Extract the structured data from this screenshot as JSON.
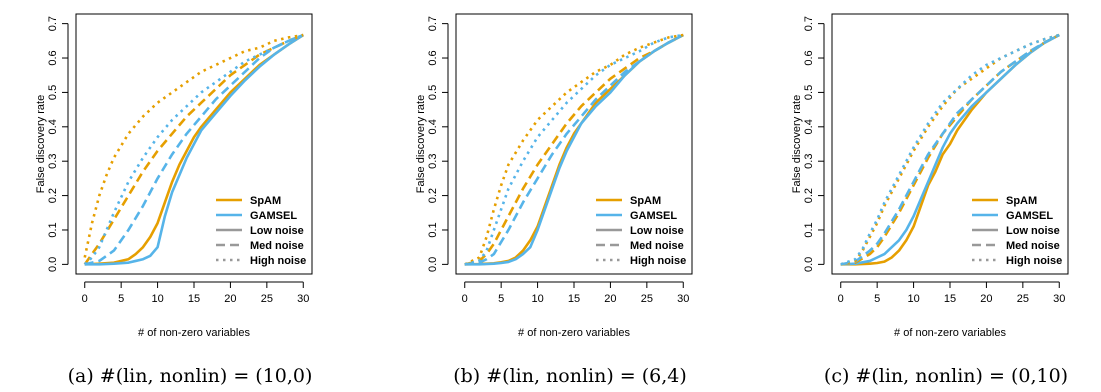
{
  "colors": {
    "SpAM": "#E69F00",
    "GAMSEL": "#56B4E9",
    "gray": "#999999"
  },
  "chart_data": [
    {
      "type": "line",
      "caption": "(a) #(lin, nonlin) = (10,0)",
      "title": "",
      "xlabel": "# of non-zero variables",
      "ylabel": "False discovery rate",
      "xlim": [
        0,
        30
      ],
      "ylim": [
        0,
        0.7
      ],
      "xticks": [
        "0",
        "5",
        "10",
        "15",
        "20",
        "25",
        "30"
      ],
      "yticks": [
        "0.0",
        "0.1",
        "0.2",
        "0.3",
        "0.4",
        "0.5",
        "0.6",
        "0.7"
      ],
      "legend": {
        "position": "bottom-right",
        "entries": [
          {
            "label": "SpAM",
            "color": "#E69F00",
            "dash": "solid"
          },
          {
            "label": "GAMSEL",
            "color": "#56B4E9",
            "dash": "solid"
          },
          {
            "label": "Low noise",
            "color": "#999999",
            "dash": "solid"
          },
          {
            "label": "Med noise",
            "color": "#999999",
            "dash": "dashed"
          },
          {
            "label": "High noise",
            "color": "#999999",
            "dash": "dotted"
          }
        ]
      },
      "series": [
        {
          "name": "SpAM Low noise",
          "method": "SpAM",
          "noise": "Low noise",
          "x": [
            0,
            2,
            4,
            6,
            7,
            8,
            9,
            10,
            11,
            12,
            13,
            14,
            15,
            16,
            18,
            20,
            22,
            24,
            26,
            28,
            30
          ],
          "y": [
            0,
            0.002,
            0.005,
            0.015,
            0.03,
            0.05,
            0.08,
            0.12,
            0.18,
            0.24,
            0.29,
            0.33,
            0.37,
            0.4,
            0.45,
            0.5,
            0.54,
            0.58,
            0.61,
            0.64,
            0.667
          ]
        },
        {
          "name": "GAMSEL Low noise",
          "method": "GAMSEL",
          "noise": "Low noise",
          "x": [
            0,
            2,
            4,
            6,
            7,
            8,
            9,
            10,
            11,
            12,
            13,
            14,
            15,
            16,
            18,
            20,
            22,
            24,
            26,
            28,
            30
          ],
          "y": [
            0,
            0,
            0.002,
            0.005,
            0.01,
            0.015,
            0.025,
            0.05,
            0.14,
            0.21,
            0.26,
            0.31,
            0.35,
            0.39,
            0.44,
            0.49,
            0.535,
            0.575,
            0.61,
            0.64,
            0.667
          ]
        },
        {
          "name": "SpAM Med noise",
          "method": "SpAM",
          "noise": "Med noise",
          "x": [
            0,
            1,
            2,
            4,
            6,
            8,
            10,
            12,
            14,
            16,
            18,
            20,
            22,
            24,
            26,
            28,
            30
          ],
          "y": [
            0,
            0.03,
            0.06,
            0.13,
            0.2,
            0.27,
            0.33,
            0.38,
            0.43,
            0.47,
            0.51,
            0.55,
            0.58,
            0.61,
            0.63,
            0.65,
            0.667
          ]
        },
        {
          "name": "GAMSEL Med noise",
          "method": "GAMSEL",
          "noise": "Med noise",
          "x": [
            0,
            1,
            2,
            4,
            6,
            8,
            10,
            12,
            14,
            16,
            18,
            20,
            22,
            24,
            26,
            28,
            30
          ],
          "y": [
            0,
            0.005,
            0.01,
            0.04,
            0.1,
            0.17,
            0.25,
            0.32,
            0.38,
            0.43,
            0.48,
            0.52,
            0.56,
            0.6,
            0.63,
            0.65,
            0.667
          ]
        },
        {
          "name": "SpAM High noise",
          "method": "SpAM",
          "noise": "High noise",
          "x": [
            0,
            1,
            2,
            3,
            4,
            6,
            8,
            10,
            12,
            14,
            16,
            18,
            20,
            22,
            24,
            26,
            28,
            30
          ],
          "y": [
            0.02,
            0.12,
            0.2,
            0.26,
            0.31,
            0.38,
            0.43,
            0.47,
            0.5,
            0.53,
            0.56,
            0.58,
            0.6,
            0.62,
            0.63,
            0.65,
            0.66,
            0.667
          ]
        },
        {
          "name": "GAMSEL High noise",
          "method": "GAMSEL",
          "noise": "High noise",
          "x": [
            0,
            1,
            2,
            4,
            6,
            8,
            10,
            12,
            14,
            16,
            18,
            20,
            22,
            24,
            26,
            28,
            30
          ],
          "y": [
            0,
            0.02,
            0.05,
            0.15,
            0.24,
            0.31,
            0.37,
            0.42,
            0.46,
            0.5,
            0.53,
            0.56,
            0.59,
            0.61,
            0.63,
            0.65,
            0.667
          ]
        }
      ]
    },
    {
      "type": "line",
      "caption": "(b) #(lin, nonlin) = (6,4)",
      "title": "",
      "xlabel": "# of non-zero variables",
      "ylabel": "False discovery rate",
      "xlim": [
        0,
        30
      ],
      "ylim": [
        0,
        0.7
      ],
      "xticks": [
        "0",
        "5",
        "10",
        "15",
        "20",
        "25",
        "30"
      ],
      "yticks": [
        "0.0",
        "0.1",
        "0.2",
        "0.3",
        "0.4",
        "0.5",
        "0.6",
        "0.7"
      ],
      "legend": {
        "position": "bottom-right",
        "entries": [
          {
            "label": "SpAM",
            "color": "#E69F00",
            "dash": "solid"
          },
          {
            "label": "GAMSEL",
            "color": "#56B4E9",
            "dash": "solid"
          },
          {
            "label": "Low noise",
            "color": "#999999",
            "dash": "solid"
          },
          {
            "label": "Med noise",
            "color": "#999999",
            "dash": "dashed"
          },
          {
            "label": "High noise",
            "color": "#999999",
            "dash": "dotted"
          }
        ]
      },
      "series": [
        {
          "name": "SpAM Low noise",
          "method": "SpAM",
          "noise": "Low noise",
          "x": [
            0,
            2,
            4,
            5,
            6,
            7,
            8,
            9,
            10,
            11,
            12,
            13,
            14,
            15,
            16,
            18,
            20,
            22,
            24,
            26,
            28,
            30
          ],
          "y": [
            0,
            0.001,
            0.003,
            0.006,
            0.01,
            0.02,
            0.04,
            0.07,
            0.11,
            0.17,
            0.23,
            0.29,
            0.34,
            0.38,
            0.41,
            0.47,
            0.51,
            0.55,
            0.59,
            0.62,
            0.645,
            0.667
          ]
        },
        {
          "name": "GAMSEL Low noise",
          "method": "GAMSEL",
          "noise": "Low noise",
          "x": [
            0,
            2,
            4,
            5,
            6,
            7,
            8,
            9,
            10,
            11,
            12,
            13,
            14,
            15,
            16,
            18,
            20,
            22,
            24,
            26,
            28,
            30
          ],
          "y": [
            0,
            0,
            0.002,
            0.004,
            0.007,
            0.015,
            0.03,
            0.05,
            0.1,
            0.16,
            0.22,
            0.28,
            0.33,
            0.37,
            0.41,
            0.46,
            0.5,
            0.55,
            0.59,
            0.62,
            0.645,
            0.667
          ]
        },
        {
          "name": "SpAM Med noise",
          "method": "SpAM",
          "noise": "Med noise",
          "x": [
            0,
            2,
            3,
            4,
            6,
            8,
            10,
            12,
            14,
            16,
            18,
            20,
            22,
            24,
            26,
            28,
            30
          ],
          "y": [
            0,
            0.01,
            0.03,
            0.06,
            0.14,
            0.22,
            0.29,
            0.35,
            0.41,
            0.46,
            0.5,
            0.54,
            0.57,
            0.6,
            0.62,
            0.645,
            0.667
          ]
        },
        {
          "name": "GAMSEL Med noise",
          "method": "GAMSEL",
          "noise": "Med noise",
          "x": [
            0,
            2,
            3,
            4,
            6,
            8,
            10,
            12,
            14,
            16,
            18,
            20,
            22,
            24,
            26,
            28,
            30
          ],
          "y": [
            0,
            0.005,
            0.015,
            0.03,
            0.1,
            0.18,
            0.25,
            0.32,
            0.38,
            0.43,
            0.48,
            0.52,
            0.56,
            0.59,
            0.62,
            0.645,
            0.667
          ]
        },
        {
          "name": "SpAM High noise",
          "method": "SpAM",
          "noise": "High noise",
          "x": [
            0,
            2,
            3,
            4,
            5,
            6,
            8,
            10,
            12,
            14,
            16,
            18,
            20,
            22,
            24,
            26,
            28,
            30
          ],
          "y": [
            0,
            0.02,
            0.08,
            0.16,
            0.23,
            0.29,
            0.36,
            0.42,
            0.46,
            0.5,
            0.53,
            0.56,
            0.58,
            0.61,
            0.63,
            0.645,
            0.66,
            0.667
          ]
        },
        {
          "name": "GAMSEL High noise",
          "method": "GAMSEL",
          "noise": "High noise",
          "x": [
            0,
            2,
            3,
            4,
            5,
            6,
            8,
            10,
            12,
            14,
            16,
            18,
            20,
            22,
            24,
            26,
            28,
            30
          ],
          "y": [
            0,
            0.01,
            0.04,
            0.1,
            0.16,
            0.22,
            0.3,
            0.37,
            0.42,
            0.47,
            0.51,
            0.55,
            0.58,
            0.6,
            0.62,
            0.645,
            0.66,
            0.667
          ]
        }
      ]
    },
    {
      "type": "line",
      "caption": "(c) #(lin, nonlin) = (0,10)",
      "title": "",
      "xlabel": "# of non-zero variables",
      "ylabel": "False discovery rate",
      "xlim": [
        0,
        30
      ],
      "ylim": [
        0,
        0.7
      ],
      "xticks": [
        "0",
        "5",
        "10",
        "15",
        "20",
        "25",
        "30"
      ],
      "yticks": [
        "0.0",
        "0.1",
        "0.2",
        "0.3",
        "0.4",
        "0.5",
        "0.6",
        "0.7"
      ],
      "legend": {
        "position": "bottom-right",
        "entries": [
          {
            "label": "SpAM",
            "color": "#E69F00",
            "dash": "solid"
          },
          {
            "label": "GAMSEL",
            "color": "#56B4E9",
            "dash": "solid"
          },
          {
            "label": "Low noise",
            "color": "#999999",
            "dash": "solid"
          },
          {
            "label": "Med noise",
            "color": "#999999",
            "dash": "dashed"
          },
          {
            "label": "High noise",
            "color": "#999999",
            "dash": "dotted"
          }
        ]
      },
      "series": [
        {
          "name": "SpAM Low noise",
          "method": "SpAM",
          "noise": "Low noise",
          "x": [
            0,
            2,
            4,
            5,
            6,
            7,
            8,
            9,
            10,
            11,
            12,
            13,
            14,
            15,
            16,
            18,
            20,
            22,
            24,
            26,
            28,
            30
          ],
          "y": [
            0,
            0,
            0.002,
            0.004,
            0.008,
            0.02,
            0.04,
            0.07,
            0.11,
            0.17,
            0.23,
            0.27,
            0.32,
            0.35,
            0.39,
            0.45,
            0.5,
            0.54,
            0.58,
            0.615,
            0.645,
            0.667
          ]
        },
        {
          "name": "GAMSEL Low noise",
          "method": "GAMSEL",
          "noise": "Low noise",
          "x": [
            0,
            2,
            4,
            5,
            6,
            7,
            8,
            9,
            10,
            11,
            12,
            13,
            14,
            15,
            16,
            18,
            20,
            22,
            24,
            26,
            28,
            30
          ],
          "y": [
            0,
            0.002,
            0.01,
            0.02,
            0.03,
            0.05,
            0.07,
            0.1,
            0.14,
            0.19,
            0.24,
            0.29,
            0.34,
            0.38,
            0.41,
            0.46,
            0.5,
            0.54,
            0.58,
            0.615,
            0.645,
            0.667
          ]
        },
        {
          "name": "SpAM Med noise",
          "method": "SpAM",
          "noise": "Med noise",
          "x": [
            0,
            2,
            4,
            5,
            6,
            8,
            10,
            12,
            14,
            16,
            18,
            20,
            22,
            24,
            26,
            28,
            30
          ],
          "y": [
            0,
            0.005,
            0.03,
            0.05,
            0.08,
            0.15,
            0.23,
            0.31,
            0.38,
            0.43,
            0.48,
            0.52,
            0.56,
            0.59,
            0.62,
            0.645,
            0.667
          ]
        },
        {
          "name": "GAMSEL Med noise",
          "method": "GAMSEL",
          "noise": "Med noise",
          "x": [
            0,
            2,
            4,
            5,
            6,
            8,
            10,
            12,
            14,
            16,
            18,
            20,
            22,
            24,
            26,
            28,
            30
          ],
          "y": [
            0,
            0.008,
            0.04,
            0.06,
            0.09,
            0.16,
            0.24,
            0.32,
            0.38,
            0.44,
            0.48,
            0.52,
            0.56,
            0.59,
            0.62,
            0.645,
            0.667
          ]
        },
        {
          "name": "SpAM High noise",
          "method": "SpAM",
          "noise": "High noise",
          "x": [
            0,
            2,
            3,
            4,
            5,
            6,
            8,
            10,
            12,
            14,
            16,
            18,
            20,
            22,
            24,
            26,
            28,
            30
          ],
          "y": [
            0,
            0.01,
            0.04,
            0.08,
            0.12,
            0.17,
            0.25,
            0.33,
            0.4,
            0.46,
            0.51,
            0.54,
            0.57,
            0.6,
            0.62,
            0.64,
            0.655,
            0.667
          ]
        },
        {
          "name": "GAMSEL High noise",
          "method": "GAMSEL",
          "noise": "High noise",
          "x": [
            0,
            2,
            3,
            4,
            5,
            6,
            8,
            10,
            12,
            14,
            16,
            18,
            20,
            22,
            24,
            26,
            28,
            30
          ],
          "y": [
            0,
            0.015,
            0.045,
            0.09,
            0.13,
            0.18,
            0.26,
            0.34,
            0.41,
            0.47,
            0.51,
            0.55,
            0.58,
            0.6,
            0.62,
            0.64,
            0.655,
            0.667
          ]
        }
      ]
    }
  ]
}
